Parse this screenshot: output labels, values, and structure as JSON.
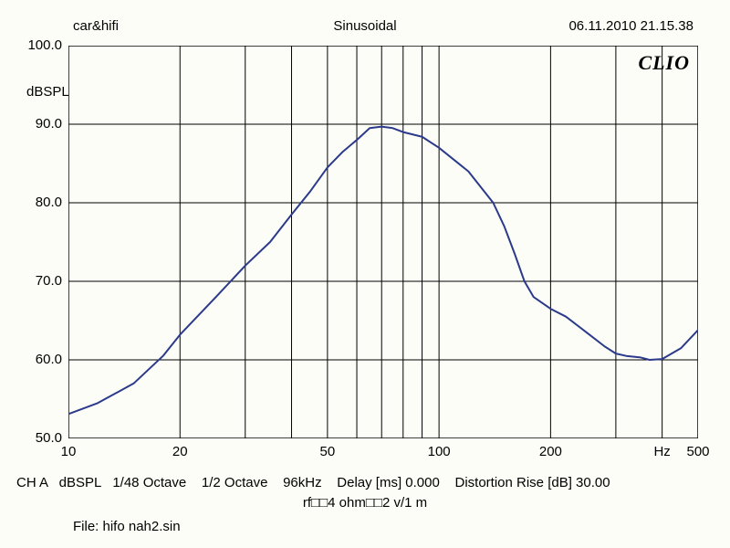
{
  "header": {
    "left": "car&hifi",
    "center": "Sinusoidal",
    "right": "06.11.2010 21.15.38"
  },
  "ylabel": "dBSPL",
  "logo": "CLIO",
  "footer": {
    "line1": "CH A   dBSPL   1/48 Octave    1/2 Octave    96kHz    Delay [ms] 0.000    Distortion Rise [dB] 30.00",
    "line2": "rf□□4 ohm□□2 v/1 m",
    "line3": "File: hifo nah2.sin"
  },
  "chart": {
    "type": "line",
    "background_color": "#fdfdf8",
    "border_color": "#000000",
    "grid_color": "#000000",
    "line_color": "#2b3a8a",
    "line_width": 2,
    "xscale": "log",
    "xlim": [
      10,
      500
    ],
    "ylim": [
      50,
      100
    ],
    "ytick_step": 10,
    "yticks": [
      50.0,
      60.0,
      70.0,
      80.0,
      90.0,
      100.0
    ],
    "xticks_major": [
      10,
      20,
      50,
      100,
      200,
      500
    ],
    "xticks_major_labels": [
      "10",
      "20",
      "50",
      "100",
      "200",
      "500"
    ],
    "xticks_minor": [
      30,
      40,
      60,
      70,
      80,
      90,
      300,
      400
    ],
    "x_axis_unit_label": "Hz",
    "x_axis_unit_label_pos": 400,
    "series_x": [
      10,
      12,
      15,
      18,
      20,
      25,
      30,
      35,
      40,
      45,
      50,
      55,
      60,
      65,
      70,
      75,
      80,
      90,
      100,
      120,
      140,
      150,
      160,
      170,
      180,
      200,
      220,
      250,
      280,
      300,
      320,
      350,
      370,
      400,
      450,
      500
    ],
    "series_y": [
      53.1,
      54.5,
      57.0,
      60.5,
      63.2,
      68.0,
      72.0,
      75.0,
      78.5,
      81.5,
      84.5,
      86.5,
      88.0,
      89.5,
      89.7,
      89.5,
      89.0,
      88.4,
      87.0,
      84.0,
      80.0,
      77.0,
      73.5,
      70.0,
      68.0,
      66.5,
      65.5,
      63.5,
      61.7,
      60.8,
      60.5,
      60.3,
      60.0,
      60.1,
      61.5,
      63.8
    ]
  }
}
